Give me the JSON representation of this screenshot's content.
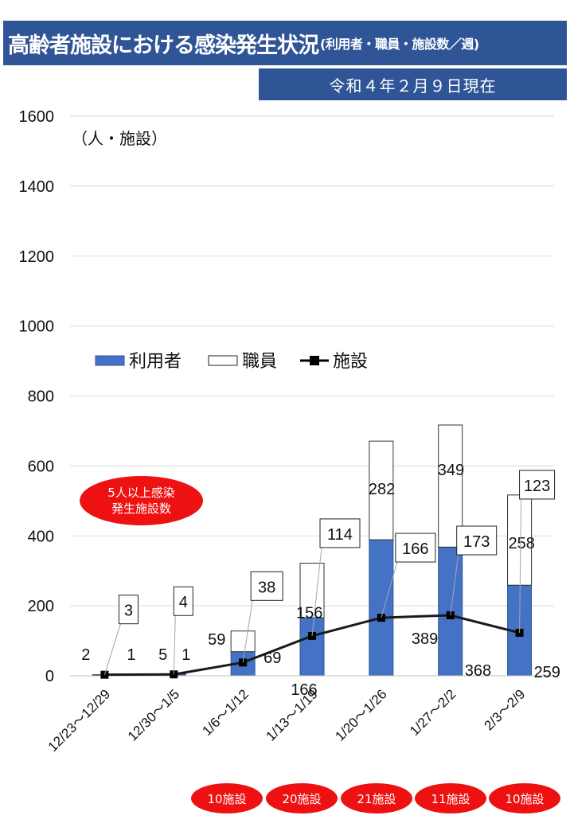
{
  "header": {
    "title": "高齢者施設における感染発生状況",
    "subtitle": "(利用者・職員・施設数／週)",
    "date": "令和４年２月９日現在"
  },
  "chart_data": {
    "type": "bar",
    "stacked": true,
    "unit_label": "（人・施設）",
    "categories": [
      "12/23～12/29",
      "12/30～1/5",
      "1/6～1/12",
      "1/13～1/19",
      "1/20～1/26",
      "1/27～2/2",
      "2/3～2/9"
    ],
    "series": [
      {
        "name": "利用者",
        "type": "bar",
        "values": [
          2,
          5,
          69,
          166,
          389,
          368,
          259
        ],
        "color": "#4472c4"
      },
      {
        "name": "職員",
        "type": "bar",
        "values": [
          1,
          1,
          59,
          156,
          282,
          349,
          258
        ],
        "color": "#ffffff"
      },
      {
        "name": "施設",
        "type": "line",
        "values": [
          3,
          4,
          38,
          114,
          166,
          173,
          123
        ],
        "color": "#000000"
      }
    ],
    "ylim": [
      0,
      1600
    ],
    "yticks": [
      0,
      200,
      400,
      600,
      800,
      1000,
      1200,
      1400,
      1600
    ],
    "grid": true,
    "legend_position": "top-left"
  },
  "annotations": {
    "callout_line1": "5人以上感染",
    "callout_line2": "発生施設数",
    "facility_counts": [
      "10施設",
      "20施設",
      "21施設",
      "11施設",
      "10施設"
    ]
  }
}
